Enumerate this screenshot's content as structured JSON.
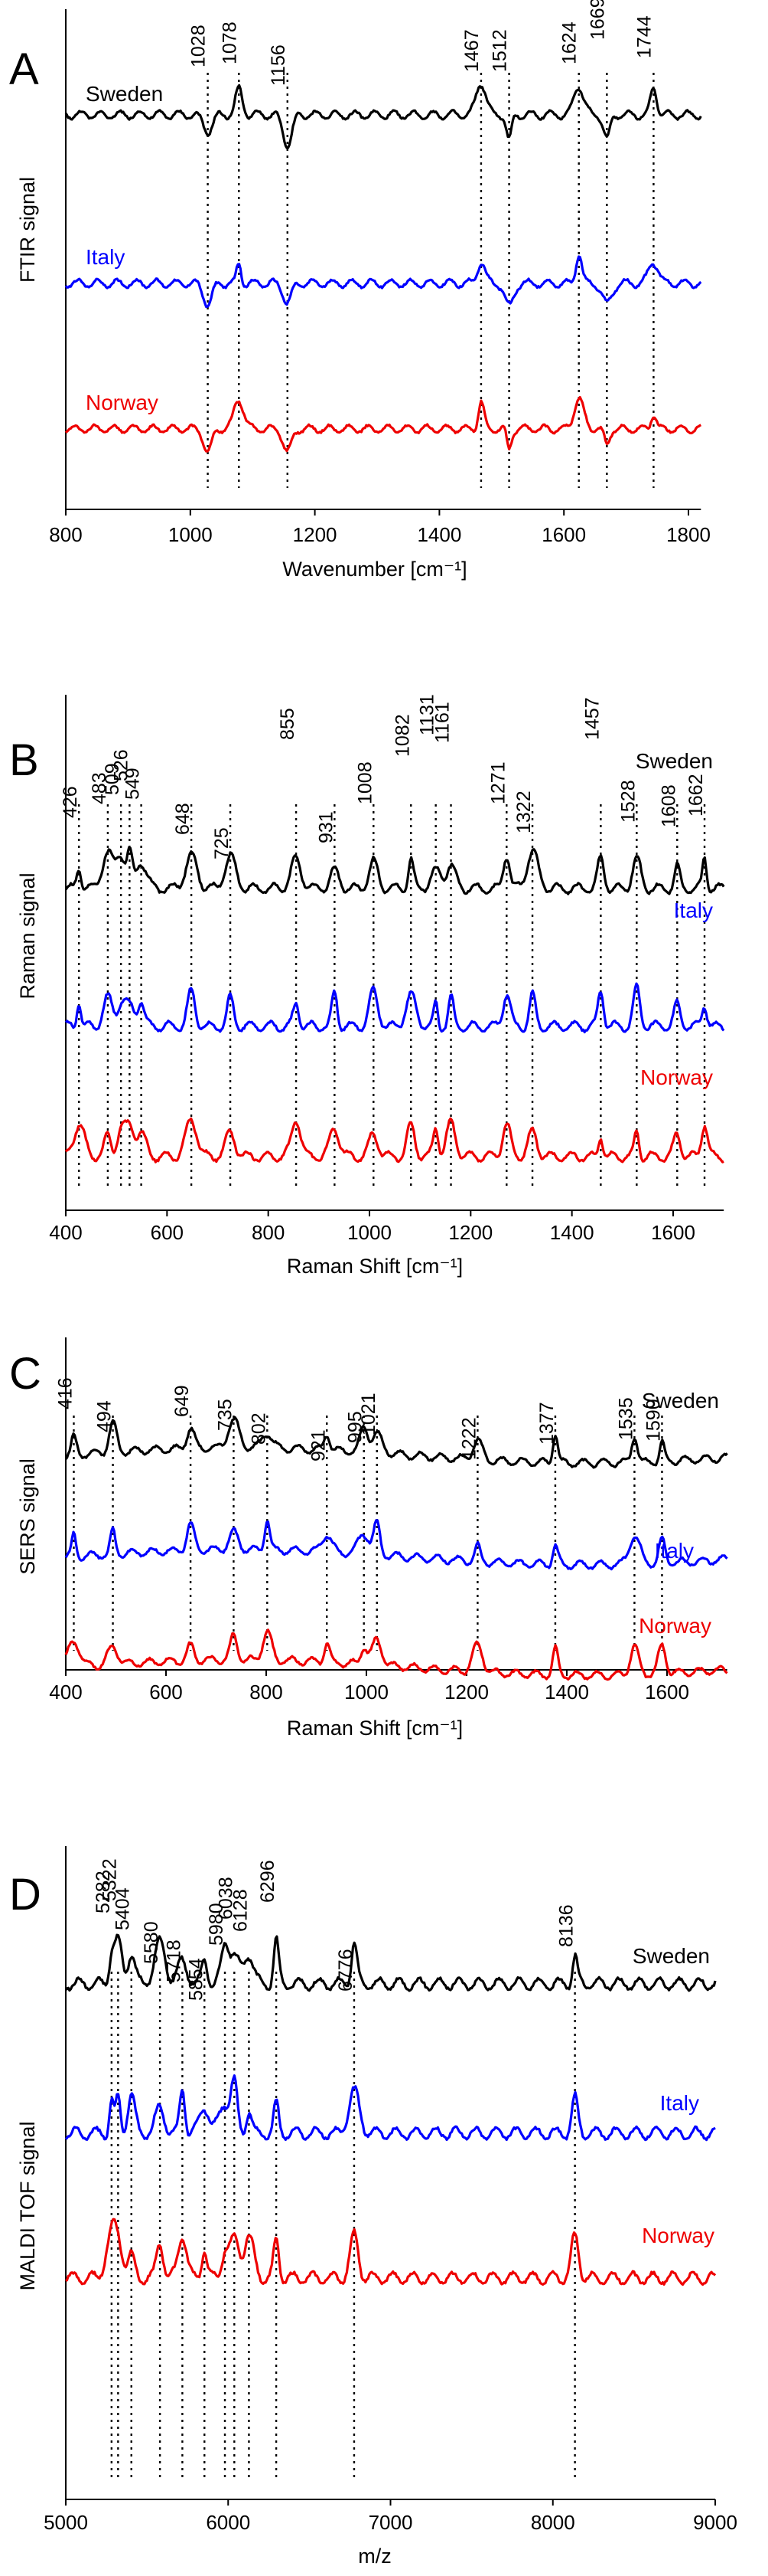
{
  "figure_title": "",
  "chart_data": [
    {
      "panel": "A",
      "type": "line",
      "xlabel": "Wavenumber [cm⁻¹]",
      "ylabel": "FTIR signal",
      "xlim": [
        800,
        1820
      ],
      "xticks": [
        800,
        1000,
        1200,
        1400,
        1600,
        1800
      ],
      "xtick_labels": [
        "800",
        "1000",
        "1200",
        "1400",
        "1600",
        "1800"
      ],
      "peaks": [
        1028,
        1078,
        1156,
        1467,
        1512,
        1624,
        1669,
        1744
      ],
      "peak_labels": [
        "1028",
        "1078",
        "1156",
        "1467",
        "1512",
        "1624",
        "1669",
        "1744"
      ],
      "series": [
        {
          "name": "Sweden",
          "color": "#000000",
          "offset": 0.0
        },
        {
          "name": "Italy",
          "color": "#0000ff",
          "offset": 0.0
        },
        {
          "name": "Norway",
          "color": "#ee0000",
          "offset": 0.0
        }
      ]
    },
    {
      "panel": "B",
      "type": "line",
      "xlabel": "Raman Shift [cm⁻¹]",
      "ylabel": "Raman signal",
      "xlim": [
        400,
        1700
      ],
      "xticks": [
        400,
        600,
        800,
        1000,
        1200,
        1400,
        1600
      ],
      "xtick_labels": [
        "400",
        "600",
        "800",
        "1000",
        "1200",
        "1400",
        "1600"
      ],
      "peaks": [
        426,
        483,
        509,
        526,
        549,
        648,
        725,
        855,
        931,
        1008,
        1082,
        1131,
        1161,
        1271,
        1322,
        1457,
        1528,
        1608,
        1662
      ],
      "peak_labels": [
        "426",
        "483",
        "509",
        "526",
        "549",
        "648",
        "725",
        "855",
        "931",
        "1008",
        "1082",
        "1131",
        "1161",
        "1271",
        "1322",
        "1457",
        "1528",
        "1608",
        "1662"
      ],
      "series": [
        {
          "name": "Sweden",
          "color": "#000000"
        },
        {
          "name": "Italy",
          "color": "#0000ff"
        },
        {
          "name": "Norway",
          "color": "#ee0000"
        }
      ]
    },
    {
      "panel": "C",
      "type": "line",
      "xlabel": "Raman Shift [cm⁻¹]",
      "ylabel": "SERS signal",
      "xlim": [
        400,
        1720
      ],
      "xticks": [
        400,
        600,
        800,
        1000,
        1200,
        1400,
        1600
      ],
      "xtick_labels": [
        "400",
        "600",
        "800",
        "1000",
        "1200",
        "1400",
        "1600"
      ],
      "peaks": [
        416,
        494,
        649,
        735,
        802,
        921,
        995,
        1021,
        1222,
        1377,
        1535,
        1590
      ],
      "peak_labels": [
        "416",
        "494",
        "649",
        "735",
        "802",
        "921",
        "995",
        "1021",
        "1222",
        "1377",
        "1535",
        "1590"
      ],
      "series": [
        {
          "name": "Sweden",
          "color": "#000000"
        },
        {
          "name": "Italy",
          "color": "#0000ff"
        },
        {
          "name": "Norway",
          "color": "#ee0000"
        }
      ]
    },
    {
      "panel": "D",
      "type": "line",
      "xlabel": "m/z",
      "ylabel": "MALDI TOF signal",
      "xlim": [
        5000,
        9000
      ],
      "xticks": [
        5000,
        6000,
        7000,
        8000,
        9000
      ],
      "xtick_labels": [
        "5000",
        "6000",
        "7000",
        "8000",
        "9000"
      ],
      "peaks": [
        5282,
        5322,
        5404,
        5580,
        5718,
        5854,
        5980,
        6038,
        6128,
        6296,
        6776,
        8136
      ],
      "peak_labels": [
        "5282",
        "5322",
        "5404",
        "5580",
        "5718",
        "5854",
        "5980",
        "6038",
        "6128",
        "6296",
        "6776",
        "8136"
      ],
      "series": [
        {
          "name": "Sweden",
          "color": "#000000"
        },
        {
          "name": "Italy",
          "color": "#0000ff"
        },
        {
          "name": "Norway",
          "color": "#ee0000"
        }
      ]
    }
  ]
}
